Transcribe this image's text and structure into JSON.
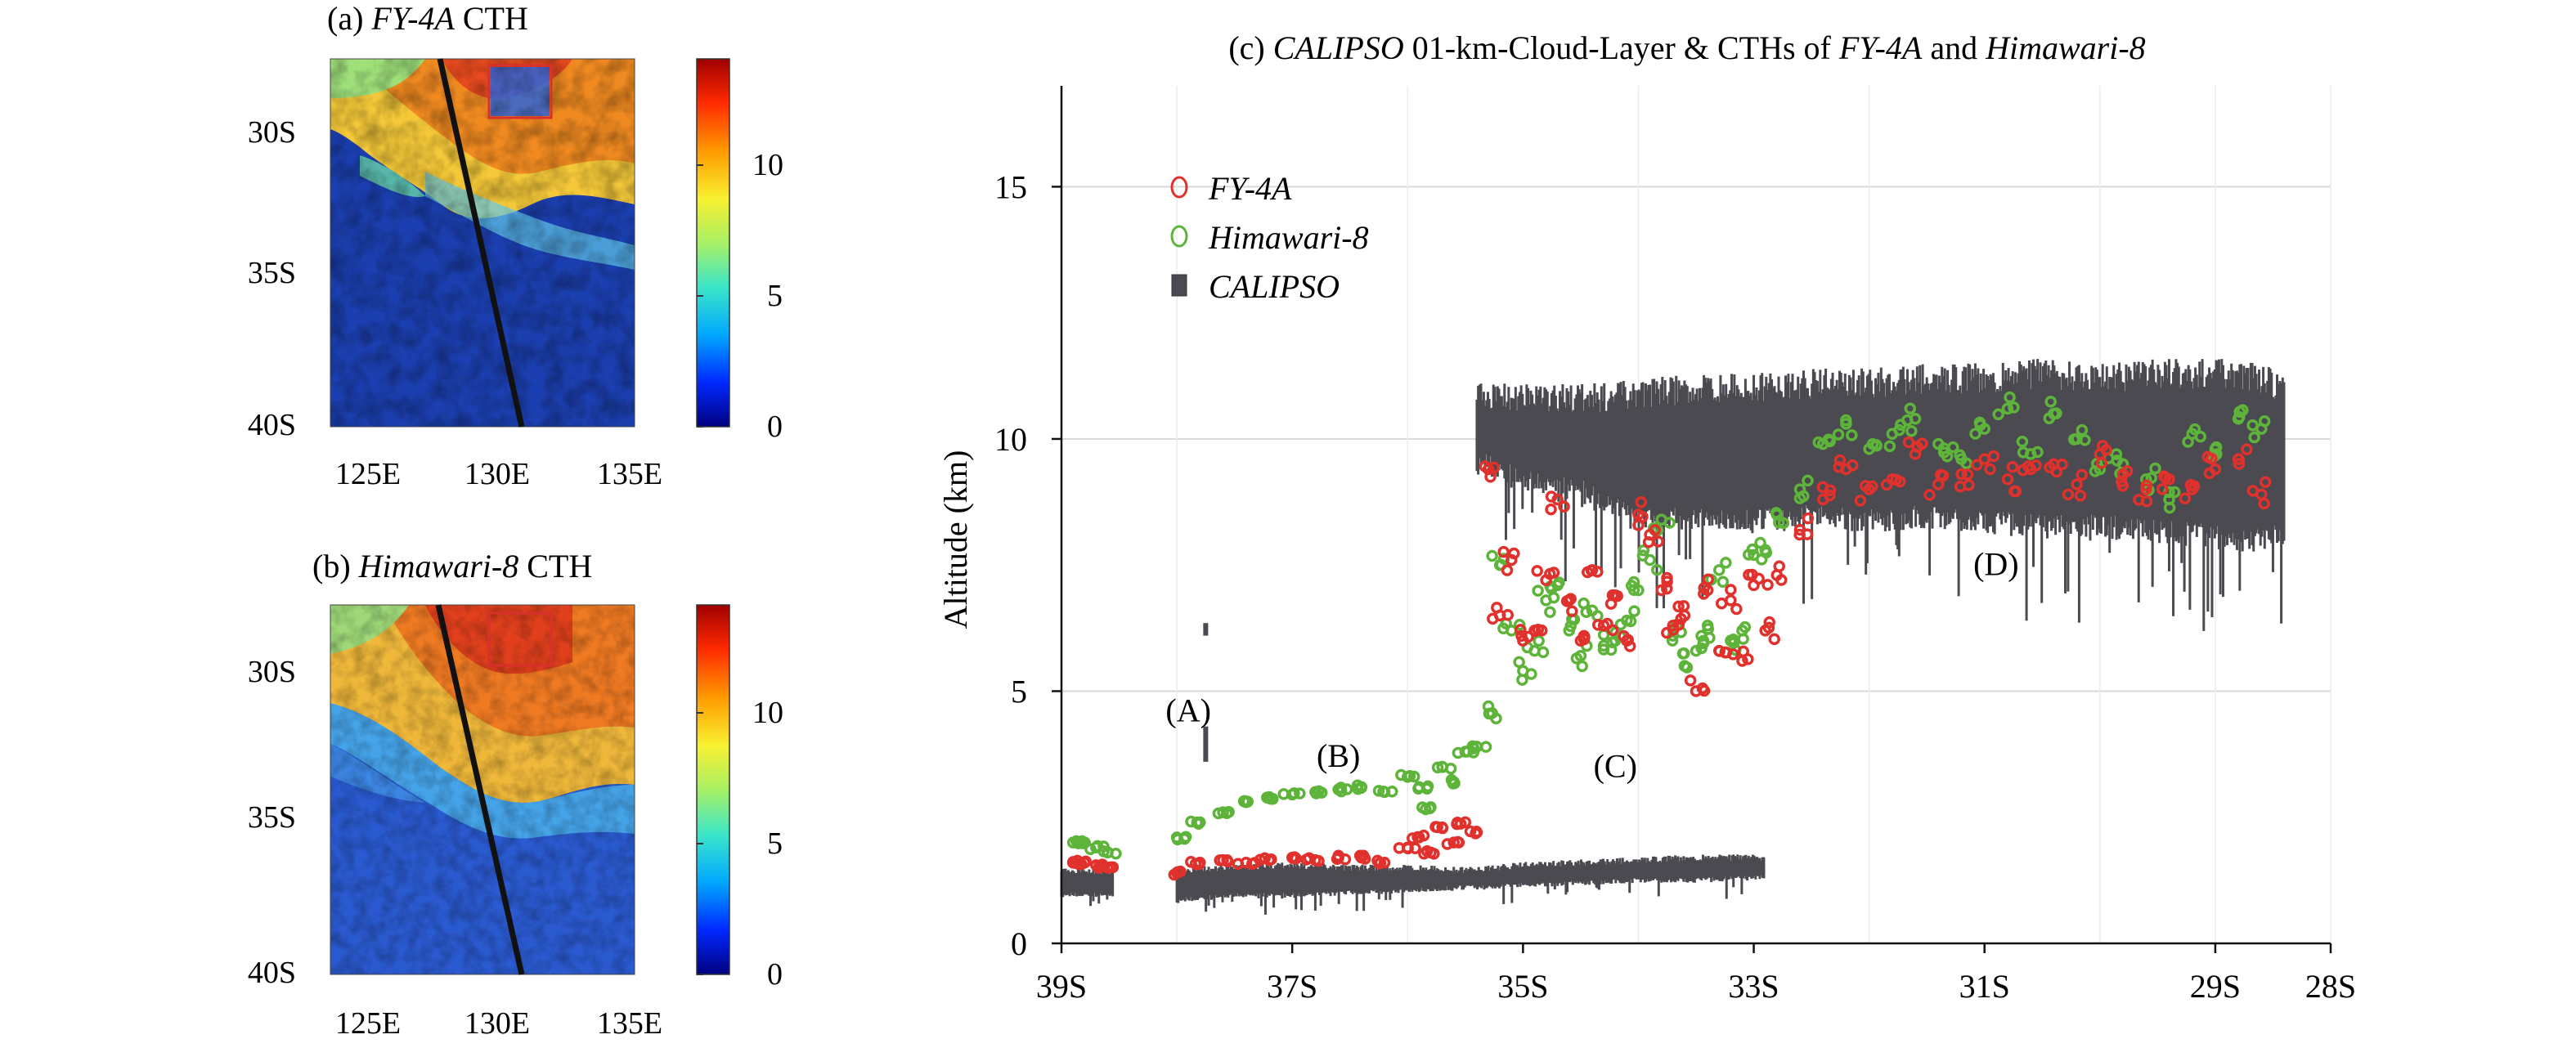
{
  "colors": {
    "fy4a": "#e0312d",
    "himawari": "#5eb43a",
    "calipso": "#4a4a50",
    "grid": "#d9d9d9",
    "track": "#111111",
    "roi_box": "#d9302c"
  },
  "colorbar": {
    "stops": [
      "#00007f",
      "#0028ff",
      "#00a8ff",
      "#3ce6c8",
      "#a8f064",
      "#f8f030",
      "#ff9a00",
      "#ff2a00",
      "#a00000"
    ],
    "ticks": [
      "0",
      "5",
      "10"
    ]
  },
  "panel_a": {
    "title_prefix": "(a) ",
    "title_italic": "FY-4A",
    "title_suffix": " CTH",
    "lat_ticks": [
      "30S",
      "35S",
      "40S"
    ],
    "lon_ticks": [
      "125E",
      "130E",
      "135E"
    ]
  },
  "panel_b": {
    "title_prefix": "(b) ",
    "title_italic": "Himawari-8",
    "title_suffix": " CTH",
    "lat_ticks": [
      "30S",
      "35S",
      "40S"
    ],
    "lon_ticks": [
      "125E",
      "130E",
      "135E"
    ]
  },
  "chart_data": {
    "type": "scatter",
    "title_parts": [
      {
        "text": "(c) ",
        "italic": false
      },
      {
        "text": "CALIPSO",
        "italic": true
      },
      {
        "text": " 01-km-Cloud-Layer & CTHs of ",
        "italic": false
      },
      {
        "text": "FY-4A",
        "italic": true
      },
      {
        "text": " and ",
        "italic": false
      },
      {
        "text": "Himawari-8",
        "italic": true
      }
    ],
    "ylabel": "Altitude (km)",
    "xlabel": "",
    "x_direction": "south-to-north (latitude increases to the right)",
    "xlim": [
      -39,
      -28
    ],
    "ylim": [
      0,
      17
    ],
    "x_ticks": [
      {
        "value": -39,
        "label": "39S"
      },
      {
        "value": -37,
        "label": "37S"
      },
      {
        "value": -35,
        "label": "35S"
      },
      {
        "value": -33,
        "label": "33S"
      },
      {
        "value": -31,
        "label": "31S"
      },
      {
        "value": -29,
        "label": "29S"
      },
      {
        "value": -28,
        "label": "28S"
      }
    ],
    "y_ticks": [
      0,
      5,
      10,
      15
    ],
    "grid": true,
    "legend": {
      "position": "upper-left",
      "entries": [
        {
          "label": "FY-4A",
          "series": "fy4a"
        },
        {
          "label": "Himawari-8",
          "series": "himawari"
        },
        {
          "label": "CALIPSO",
          "series": "calipso"
        }
      ]
    },
    "annotations": [
      {
        "text": "(A)",
        "x": -37.9,
        "y": 4.4
      },
      {
        "text": "(B)",
        "x": -36.6,
        "y": 3.5
      },
      {
        "text": "(C)",
        "x": -34.2,
        "y": 3.3
      },
      {
        "text": "(D)",
        "x": -30.9,
        "y": 7.3
      }
    ],
    "series": [
      {
        "name": "FY-4A",
        "kind": "scatter-open-circle",
        "x": [
          -38.9,
          -38.8,
          -38.7,
          -38.6,
          -38.0,
          -37.8,
          -37.6,
          -37.4,
          -37.2,
          -37.0,
          -36.8,
          -36.6,
          -36.4,
          -36.2,
          -36.0,
          -35.9,
          -35.8,
          -35.7,
          -35.6,
          -35.5,
          -35.4,
          -35.3,
          -35.2,
          -35.1,
          -35.0,
          -34.9,
          -34.8,
          -34.7,
          -34.6,
          -34.5,
          -34.4,
          -34.3,
          -34.2,
          -34.1,
          -34.0,
          -33.9,
          -33.8,
          -33.7,
          -33.6,
          -33.5,
          -33.4,
          -33.3,
          -33.2,
          -33.1,
          -33.0,
          -32.9,
          -32.8,
          -32.6,
          -32.4,
          -32.2,
          -32.0,
          -31.8,
          -31.6,
          -31.4,
          -31.2,
          -31.0,
          -30.8,
          -30.6,
          -30.4,
          -30.2,
          -30.0,
          -29.8,
          -29.6,
          -29.4,
          -29.2,
          -29.0,
          -28.8,
          -28.6
        ],
        "values": [
          1.6,
          1.6,
          1.55,
          1.5,
          1.4,
          1.6,
          1.65,
          1.6,
          1.65,
          1.7,
          1.65,
          1.7,
          1.7,
          1.6,
          1.9,
          2.1,
          1.8,
          2.3,
          2.0,
          2.4,
          2.2,
          9.4,
          6.5,
          7.6,
          6.0,
          6.2,
          7.2,
          8.8,
          6.8,
          6.0,
          7.4,
          6.3,
          6.9,
          6.0,
          8.5,
          8.1,
          7.0,
          6.3,
          6.5,
          5.0,
          7.0,
          5.8,
          6.8,
          5.6,
          7.1,
          6.2,
          7.3,
          8.2,
          8.8,
          9.4,
          9.0,
          9.2,
          9.7,
          9.1,
          9.3,
          9.6,
          9.2,
          9.4,
          9.5,
          9.1,
          9.7,
          9.3,
          9.0,
          9.2,
          9.0,
          9.4,
          9.6,
          8.9
        ]
      },
      {
        "name": "Himawari-8",
        "kind": "scatter-open-circle",
        "x": [
          -38.9,
          -38.8,
          -38.7,
          -38.6,
          -38.0,
          -37.8,
          -37.6,
          -37.4,
          -37.2,
          -37.0,
          -36.8,
          -36.6,
          -36.4,
          -36.2,
          -36.0,
          -35.9,
          -35.8,
          -35.7,
          -35.6,
          -35.5,
          -35.4,
          -35.3,
          -35.2,
          -35.1,
          -35.0,
          -34.9,
          -34.8,
          -34.7,
          -34.6,
          -34.5,
          -34.4,
          -34.3,
          -34.2,
          -34.1,
          -34.0,
          -33.9,
          -33.8,
          -33.7,
          -33.6,
          -33.5,
          -33.4,
          -33.3,
          -33.2,
          -33.1,
          -33.0,
          -32.9,
          -32.8,
          -32.6,
          -32.4,
          -32.2,
          -32.0,
          -31.8,
          -31.6,
          -31.4,
          -31.2,
          -31.0,
          -30.8,
          -30.6,
          -30.4,
          -30.2,
          -30.0,
          -29.8,
          -29.6,
          -29.4,
          -29.2,
          -29.0,
          -28.8,
          -28.6
        ],
        "values": [
          2.0,
          2.0,
          1.9,
          1.8,
          2.1,
          2.4,
          2.6,
          2.8,
          2.9,
          2.95,
          3.0,
          3.05,
          3.1,
          3.0,
          3.3,
          3.1,
          2.7,
          3.5,
          3.2,
          3.8,
          3.9,
          4.7,
          7.5,
          6.2,
          5.4,
          5.8,
          6.8,
          7.1,
          6.2,
          5.7,
          6.6,
          5.9,
          6.0,
          6.4,
          7.0,
          7.6,
          8.4,
          6.1,
          5.5,
          5.8,
          6.3,
          7.4,
          6.0,
          6.2,
          7.7,
          7.8,
          8.5,
          9.0,
          9.9,
          10.3,
          9.8,
          10.1,
          10.4,
          9.9,
          9.6,
          10.2,
          10.6,
          9.7,
          10.5,
          10.0,
          9.4,
          9.5,
          9.2,
          8.8,
          10.1,
          9.8,
          10.4,
          10.2
        ]
      },
      {
        "name": "CALIPSO",
        "kind": "cloud-layer-extent",
        "x": [
          -39.0,
          -38.7,
          -38.5,
          -38.0,
          -37.5,
          -37.0,
          -36.5,
          -36.0,
          -35.5,
          -35.0,
          -34.5,
          -34.0,
          -33.5,
          -33.0,
          -32.9
        ],
        "bottom": [
          1.0,
          1.0,
          1.0,
          0.9,
          1.0,
          1.0,
          1.05,
          1.1,
          1.15,
          1.2,
          1.25,
          1.3,
          1.3,
          1.35,
          1.35
        ],
        "top": [
          1.45,
          1.4,
          1.4,
          1.45,
          1.5,
          1.55,
          1.5,
          1.5,
          1.45,
          1.55,
          1.6,
          1.65,
          1.7,
          1.7,
          1.7
        ],
        "upper_layer_x": [
          -35.4,
          -35.0,
          -34.5,
          -34.0,
          -33.5,
          -33.0,
          -32.5,
          -32.0,
          -31.5,
          -31.0,
          -30.5,
          -30.0,
          -29.5,
          -29.0,
          -28.6,
          -28.4
        ],
        "upper_layer_bottom": [
          9.8,
          9.4,
          9.2,
          8.6,
          8.7,
          8.6,
          8.7,
          8.6,
          8.7,
          8.6,
          8.5,
          8.5,
          8.4,
          8.3,
          8.2,
          8.4
        ],
        "upper_layer_top": [
          10.9,
          10.8,
          10.8,
          10.9,
          11.0,
          11.0,
          11.1,
          11.1,
          11.2,
          11.2,
          11.3,
          11.2,
          11.3,
          11.3,
          11.2,
          11.0
        ],
        "isolated_segments": [
          {
            "x": -37.75,
            "bottom": 6.1,
            "top": 6.35
          },
          {
            "x": -37.75,
            "bottom": 3.6,
            "top": 4.3
          }
        ]
      }
    ]
  }
}
